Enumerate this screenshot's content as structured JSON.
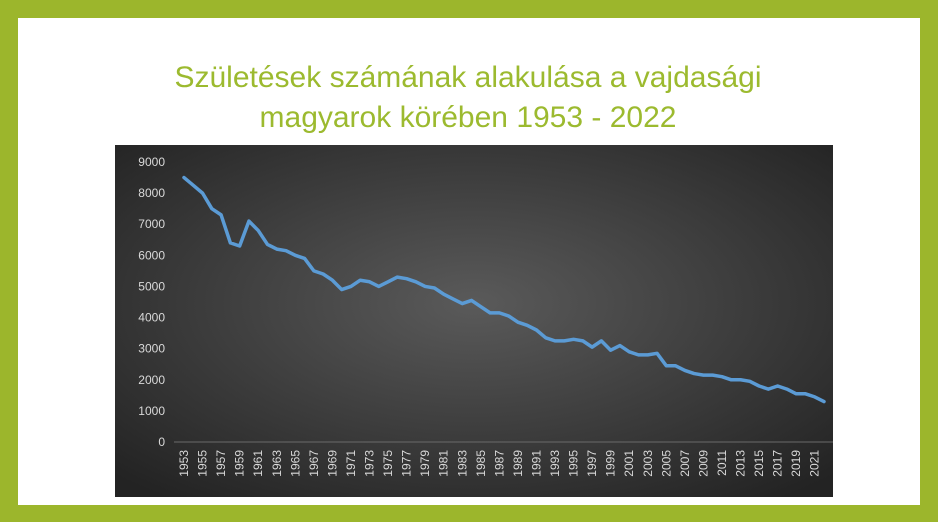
{
  "chart_data": {
    "type": "line",
    "title": "Születések számának alakulása a vajdasági magyarok körében 1953 - 2022",
    "categories": [
      "1953",
      null,
      "1955",
      null,
      "1957",
      null,
      "1959",
      null,
      "1961",
      null,
      "1963",
      null,
      "1965",
      null,
      "1967",
      null,
      "1969",
      null,
      "1971",
      null,
      "1973",
      null,
      "1975",
      null,
      "1977",
      null,
      "1979",
      null,
      "1981",
      null,
      "1983",
      null,
      "1985",
      null,
      "1987",
      null,
      "1989",
      null,
      "1991",
      null,
      "1993",
      null,
      "1995",
      null,
      "1997",
      null,
      "1999",
      null,
      "2001",
      null,
      "2003",
      null,
      "2005",
      null,
      "2007",
      null,
      "2009",
      null,
      "2011",
      null,
      "2013",
      null,
      "2015",
      null,
      "2017",
      null,
      "2019",
      null,
      "2021",
      null
    ],
    "values": [
      8500,
      8250,
      8000,
      7500,
      7300,
      6400,
      6300,
      7100,
      6800,
      6350,
      6200,
      6150,
      6000,
      5900,
      5500,
      5400,
      5200,
      4900,
      5000,
      5200,
      5150,
      5000,
      5150,
      5300,
      5250,
      5150,
      5000,
      4950,
      4750,
      4600,
      4450,
      4550,
      4350,
      4150,
      4150,
      4050,
      3850,
      3750,
      3600,
      3350,
      3250,
      3250,
      3300,
      3250,
      3050,
      3250,
      2950,
      3100,
      2900,
      2800,
      2800,
      2850,
      2450,
      2450,
      2300,
      2200,
      2150,
      2150,
      2100,
      2000,
      2000,
      1950,
      1800,
      1700,
      1800,
      1700,
      1550,
      1550,
      1450,
      1300
    ],
    "color": "#5b9bd5",
    "ylim": [
      0,
      9000
    ],
    "yticks": [
      0,
      1000,
      2000,
      3000,
      4000,
      5000,
      6000,
      7000,
      8000,
      9000
    ],
    "grid": false
  }
}
